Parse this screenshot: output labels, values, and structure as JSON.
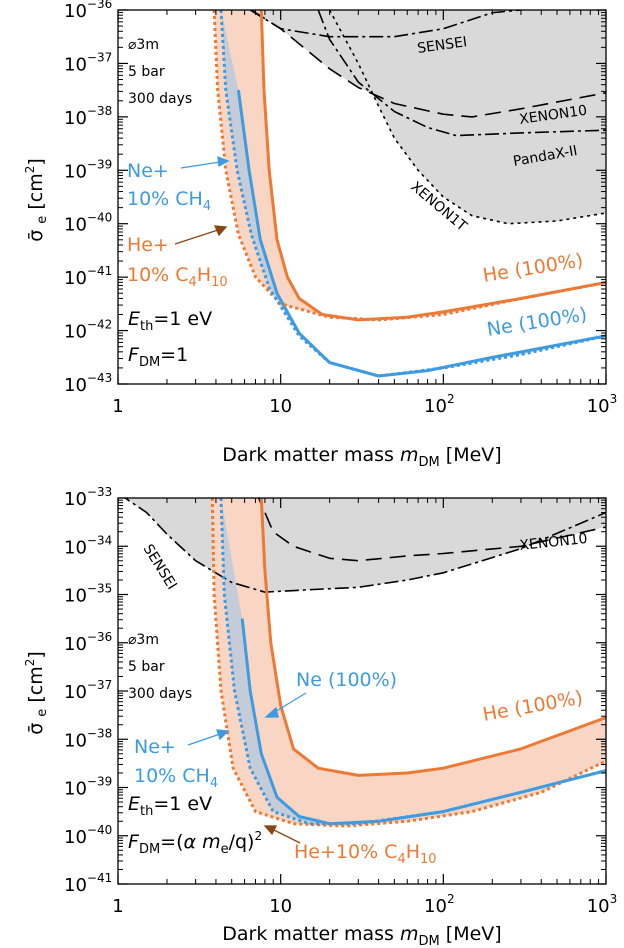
{
  "colors": {
    "ne": "#3d9be1",
    "he": "#ec7a35",
    "he_band": "#f9d5c3",
    "ne_band": "#cad4e0",
    "excluded": "#d9d9d9"
  },
  "chart_data": [
    {
      "type": "line",
      "xscale": "log",
      "yscale": "log",
      "xlim": [
        1,
        1000
      ],
      "ylim_exp": [
        -43,
        -36
      ],
      "x_ticks": [
        "1",
        "10",
        "10^2",
        "10^3"
      ],
      "y_ticks": [
        "10^-43",
        "10^-42",
        "10^-41",
        "10^-40",
        "10^-39",
        "10^-38",
        "10^-37",
        "10^-36"
      ],
      "xlabel": "Dark matter mass m_DM [MeV]",
      "ylabel": "σ_e [cm^2]",
      "setup": [
        "⌀3m",
        "5 bar",
        "300 days"
      ],
      "params": [
        "E_th=1 eV",
        "F_DM=1"
      ],
      "series": [
        {
          "name": "SENSEI",
          "style": "dashdot",
          "points": [
            [
              6.5,
              -36.0
            ],
            [
              10,
              -36.35
            ],
            [
              20,
              -36.5
            ],
            [
              50,
              -36.5
            ],
            [
              100,
              -36.35
            ],
            [
              200,
              -36.05
            ],
            [
              300,
              -36.0
            ]
          ]
        },
        {
          "name": "XENON10",
          "style": "dash",
          "points": [
            [
              6.6,
              -36.0
            ],
            [
              10,
              -36.35
            ],
            [
              20,
              -37.1
            ],
            [
              30,
              -37.45
            ],
            [
              50,
              -37.75
            ],
            [
              100,
              -37.95
            ],
            [
              150,
              -38.0
            ],
            [
              300,
              -37.85
            ],
            [
              1000,
              -37.55
            ]
          ]
        },
        {
          "name": "PandaX-II",
          "style": "dashdot",
          "points": [
            [
              17,
              -36.0
            ],
            [
              20,
              -36.55
            ],
            [
              30,
              -37.35
            ],
            [
              50,
              -37.9
            ],
            [
              80,
              -38.2
            ],
            [
              120,
              -38.35
            ],
            [
              300,
              -38.3
            ],
            [
              1000,
              -38.25
            ]
          ]
        },
        {
          "name": "XENON1T",
          "style": "dot",
          "points": [
            [
              20,
              -36.0
            ],
            [
              30,
              -37.0
            ],
            [
              40,
              -37.8
            ],
            [
              50,
              -38.4
            ],
            [
              70,
              -39.0
            ],
            [
              100,
              -39.5
            ],
            [
              150,
              -39.85
            ],
            [
              250,
              -40.0
            ],
            [
              500,
              -39.95
            ],
            [
              1000,
              -39.8
            ]
          ]
        },
        {
          "name": "He (100%)",
          "style": "solid",
          "color": "he",
          "points": [
            [
              7.6,
              -36.0
            ],
            [
              7.9,
              -37.5
            ],
            [
              8.5,
              -39.0
            ],
            [
              9.5,
              -40.3
            ],
            [
              11,
              -41.0
            ],
            [
              13,
              -41.4
            ],
            [
              18,
              -41.7
            ],
            [
              30,
              -41.8
            ],
            [
              60,
              -41.75
            ],
            [
              100,
              -41.65
            ],
            [
              300,
              -41.4
            ],
            [
              1000,
              -41.1
            ]
          ]
        },
        {
          "name": "Ne (100%)",
          "style": "solid",
          "color": "ne",
          "points": [
            [
              5.5,
              -37.5
            ],
            [
              6.4,
              -39.0
            ],
            [
              7.5,
              -40.3
            ],
            [
              9.5,
              -41.3
            ],
            [
              13,
              -42.05
            ],
            [
              20,
              -42.6
            ],
            [
              40,
              -42.85
            ],
            [
              80,
              -42.75
            ],
            [
              200,
              -42.5
            ],
            [
              1000,
              -42.1
            ]
          ]
        },
        {
          "name": "He+10% C4H10",
          "style": "dotted",
          "color": "he",
          "points": [
            [
              3.9,
              -36.0
            ],
            [
              4.1,
              -37.5
            ],
            [
              4.6,
              -39.0
            ],
            [
              5.5,
              -40.2
            ],
            [
              7,
              -41.0
            ],
            [
              10,
              -41.5
            ],
            [
              20,
              -41.75
            ],
            [
              40,
              -41.8
            ],
            [
              100,
              -41.7
            ],
            [
              300,
              -41.4
            ],
            [
              1000,
              -41.1
            ]
          ]
        },
        {
          "name": "Ne+10% CH4",
          "style": "dotted",
          "color": "ne",
          "points": [
            [
              4.3,
              -36.0
            ],
            [
              4.6,
              -37.5
            ],
            [
              5.4,
              -39.0
            ],
            [
              6.6,
              -40.2
            ],
            [
              8.5,
              -41.2
            ],
            [
              13,
              -42.1
            ],
            [
              20,
              -42.6
            ],
            [
              40,
              -42.85
            ],
            [
              100,
              -42.7
            ],
            [
              300,
              -42.45
            ],
            [
              1000,
              -42.1
            ]
          ]
        }
      ],
      "labels": {
        "sensei": "SENSEI",
        "xenon10": "XENON10",
        "pandax": "PandaX-II",
        "xenon1t": "XENON1T",
        "he100": "He (100%)",
        "ne100": "Ne (100%)",
        "ne_mix_1": "Ne+",
        "ne_mix_2": "10% CH",
        "ne_mix_sub": "4",
        "he_mix_1": "He+",
        "he_mix_2": "10% C",
        "he_mix_sub1": "4",
        "he_mix_mid": "H",
        "he_mix_sub2": "10"
      }
    },
    {
      "type": "line",
      "xscale": "log",
      "yscale": "log",
      "xlim": [
        1,
        1000
      ],
      "ylim_exp": [
        -41,
        -33
      ],
      "x_ticks": [
        "1",
        "10",
        "10^2",
        "10^3"
      ],
      "y_ticks": [
        "10^-41",
        "10^-40",
        "10^-39",
        "10^-38",
        "10^-37",
        "10^-36",
        "10^-35",
        "10^-34",
        "10^-33"
      ],
      "xlabel": "Dark matter mass m_DM [MeV]",
      "ylabel": "σ_e [cm^2]",
      "setup": [
        "⌀3m",
        "5 bar",
        "300 days"
      ],
      "params": [
        "E_th=1 eV",
        "F_DM=(α m_e/q)^2"
      ],
      "series": [
        {
          "name": "SENSEI",
          "style": "dashdot",
          "points": [
            [
              1,
              -32.9
            ],
            [
              1.5,
              -33.3
            ],
            [
              2,
              -33.75
            ],
            [
              3,
              -34.3
            ],
            [
              5,
              -34.75
            ],
            [
              8,
              -34.95
            ],
            [
              15,
              -34.9
            ],
            [
              30,
              -34.85
            ],
            [
              60,
              -34.7
            ],
            [
              100,
              -34.55
            ],
            [
              300,
              -34.05
            ],
            [
              1000,
              -33.3
            ]
          ]
        },
        {
          "name": "XENON10",
          "style": "dash",
          "points": [
            [
              7,
              -32.85
            ],
            [
              8,
              -33.3
            ],
            [
              9,
              -33.7
            ],
            [
              12,
              -34.0
            ],
            [
              20,
              -34.25
            ],
            [
              30,
              -34.3
            ],
            [
              60,
              -34.2
            ],
            [
              100,
              -34.15
            ],
            [
              300,
              -34.0
            ],
            [
              1000,
              -33.6
            ]
          ]
        },
        {
          "name": "He (100%)",
          "style": "solid",
          "color": "he",
          "points": [
            [
              7.6,
              -33.0
            ],
            [
              8,
              -34.5
            ],
            [
              8.7,
              -36.0
            ],
            [
              10,
              -37.3
            ],
            [
              12,
              -38.2
            ],
            [
              17,
              -38.6
            ],
            [
              30,
              -38.75
            ],
            [
              60,
              -38.7
            ],
            [
              100,
              -38.6
            ],
            [
              300,
              -38.2
            ],
            [
              1000,
              -37.55
            ]
          ]
        },
        {
          "name": "Ne (100%)",
          "style": "solid",
          "color": "ne",
          "points": [
            [
              5.8,
              -35.5
            ],
            [
              6.5,
              -37.0
            ],
            [
              7.6,
              -38.3
            ],
            [
              9.5,
              -39.2
            ],
            [
              13,
              -39.6
            ],
            [
              20,
              -39.75
            ],
            [
              40,
              -39.7
            ],
            [
              100,
              -39.5
            ],
            [
              300,
              -39.1
            ],
            [
              1000,
              -38.65
            ]
          ]
        },
        {
          "name": "He+10% C4H10",
          "style": "dotted",
          "color": "he",
          "points": [
            [
              3.8,
              -33.0
            ],
            [
              3.9,
              -35.0
            ],
            [
              4.3,
              -37.0
            ],
            [
              5.1,
              -38.6
            ],
            [
              7,
              -39.5
            ],
            [
              12,
              -39.75
            ],
            [
              25,
              -39.8
            ],
            [
              60,
              -39.7
            ],
            [
              150,
              -39.5
            ],
            [
              400,
              -39.1
            ],
            [
              1000,
              -38.45
            ]
          ]
        },
        {
          "name": "Ne+10% CH4",
          "style": "dotted",
          "color": "ne",
          "points": [
            [
              4.3,
              -33.0
            ],
            [
              4.5,
              -35.0
            ],
            [
              5.2,
              -37.0
            ],
            [
              6.5,
              -38.6
            ],
            [
              9,
              -39.5
            ],
            [
              15,
              -39.75
            ],
            [
              30,
              -39.75
            ],
            [
              100,
              -39.5
            ],
            [
              300,
              -39.1
            ],
            [
              1000,
              -38.65
            ]
          ]
        }
      ],
      "labels": {
        "sensei": "SENSEI",
        "xenon10": "XENON10",
        "he100": "He (100%)",
        "ne100": "Ne (100%)",
        "ne_mix_1": "Ne+",
        "ne_mix_2": "10% CH",
        "ne_mix_sub": "4",
        "he_mix_a": "He+10% C",
        "he_mix_sub1": "4",
        "he_mix_mid": "H",
        "he_mix_sub2": "10"
      }
    }
  ]
}
